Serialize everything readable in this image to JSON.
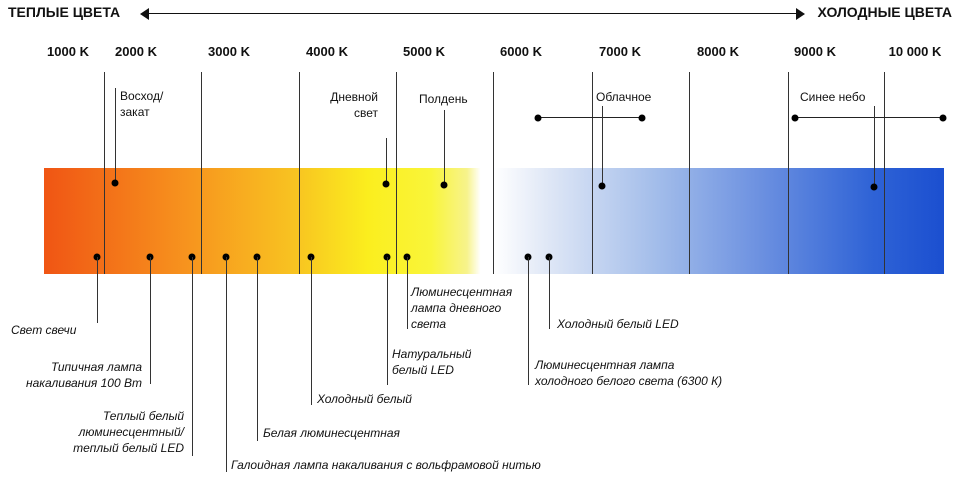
{
  "header": {
    "warm_label": "ТЕПЛЫЕ ЦВЕТА",
    "cool_label": "ХОЛОДНЫЕ ЦВЕТА"
  },
  "kelvin_scale": [
    {
      "label": "1000 K",
      "value": 1000
    },
    {
      "label": "2000 K",
      "value": 2000
    },
    {
      "label": "3000 K",
      "value": 3000
    },
    {
      "label": "4000 K",
      "value": 4000
    },
    {
      "label": "5000 K",
      "value": 5000
    },
    {
      "label": "6000 K",
      "value": 6000
    },
    {
      "label": "7000 K",
      "value": 7000
    },
    {
      "label": "8000 K",
      "value": 8000
    },
    {
      "label": "9000 K",
      "value": 9000
    },
    {
      "label": "10 000 K",
      "value": 10000
    }
  ],
  "top_labels": {
    "sunrise": "Восход/\nзакат",
    "daylight": "Дневной\nсвет",
    "noon": "Полдень",
    "cloudy": "Облачное",
    "blue_sky": "Синее небо"
  },
  "bottom_labels": {
    "candle": "Свет свечи",
    "incandescent": "Типичная лампа\nнакаливания 100 Вт",
    "warm_white": "Теплый белый\nлюминесцентный/\nтеплый белый LED",
    "halogen": "Галоидная лампа накаливания с вольфрамовой нитью",
    "white_fluor": "Белая люминесцентная",
    "cool_white": "Холодный белый",
    "natural_led": "Натуральный\nбелый LED",
    "daylight_fluor": "Люминесцентная\nлампа дневного\nсвета",
    "cool_fluor": "Люминесцентная лампа\nхолодного белого света (6300 К)",
    "cool_led": "Холодный белый LED"
  }
}
